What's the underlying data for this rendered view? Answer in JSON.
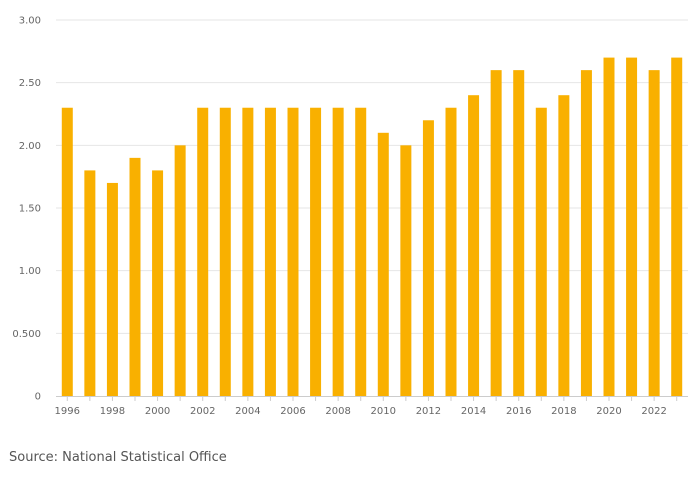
{
  "chart_data": {
    "type": "bar",
    "categories": [
      "1996",
      "1997",
      "1998",
      "1999",
      "2000",
      "2001",
      "2002",
      "2003",
      "2004",
      "2005",
      "2006",
      "2007",
      "2008",
      "2009",
      "2010",
      "2011",
      "2012",
      "2013",
      "2014",
      "2015",
      "2016",
      "2017",
      "2018",
      "2019",
      "2020",
      "2021",
      "2022",
      "2023"
    ],
    "x_tick_labels": [
      "1996",
      "1998",
      "2000",
      "2002",
      "2004",
      "2006",
      "2008",
      "2010",
      "2012",
      "2014",
      "2016",
      "2018",
      "2020",
      "2022"
    ],
    "series": [
      {
        "values": [
          2.3,
          1.8,
          1.7,
          1.9,
          1.8,
          2.0,
          2.3,
          2.3,
          2.3,
          2.3,
          2.3,
          2.3,
          2.3,
          2.3,
          2.1,
          2.0,
          2.2,
          2.3,
          2.4,
          2.6,
          2.6,
          2.3,
          2.4,
          2.6,
          2.7,
          2.7,
          2.6,
          2.7
        ]
      }
    ],
    "y_ticks": [
      0,
      0.5,
      1.0,
      1.5,
      2.0,
      2.5,
      3.0
    ],
    "y_tick_labels": [
      "0",
      "0.500",
      "1.00",
      "1.50",
      "2.00",
      "2.50",
      "3.00"
    ],
    "ylim": [
      0,
      3.0
    ],
    "title": "",
    "xlabel": "",
    "ylabel": "",
    "grid": true,
    "legend": "none",
    "colors": {
      "bar": "#F9B000",
      "grid": "#e6e6e6",
      "axis": "#cccccc"
    }
  },
  "source": "Source: National Statistical Office"
}
